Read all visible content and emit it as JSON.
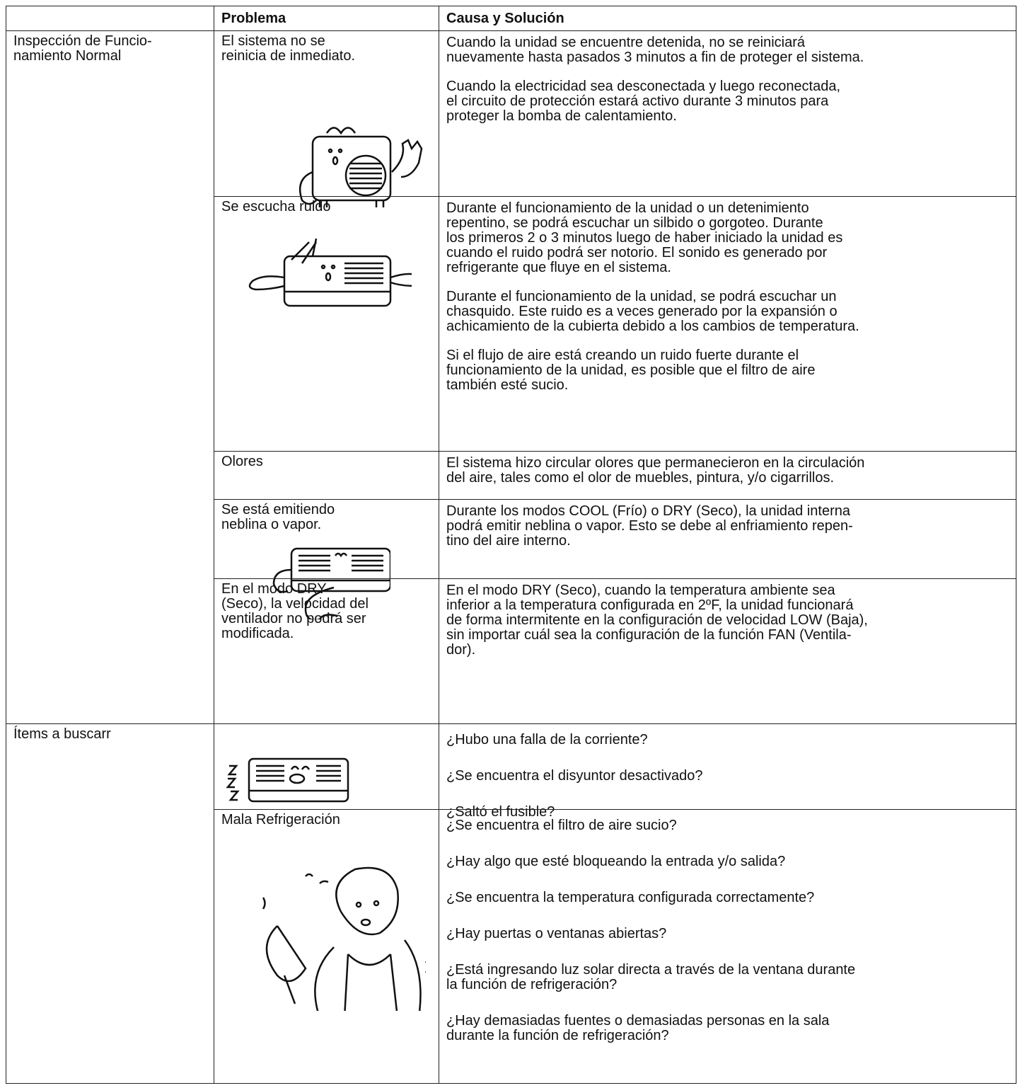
{
  "table": {
    "header": {
      "problem": "Problema",
      "cause": "Causa y Solución"
    },
    "groups": [
      {
        "label": [
          "Inspección de Funcio-",
          "namiento Normal"
        ],
        "rows": [
          {
            "problem": [
              "El sistema no se",
              "reinicia de inmediato."
            ],
            "causes": [
              [
                "Cuando la unidad se encuentre detenida, no se reiniciará",
                "nuevamente hasta pasados 3 minutos a fin de proteger el sistema."
              ],
              [
                "Cuando la electricidad sea desconectada y luego reconectada,",
                "el circuito de protección estará activo durante 3 minutos para",
                "proteger la bomba de calentamiento."
              ]
            ]
          },
          {
            "problem": [
              "Se escucha ruido"
            ],
            "causes": [
              [
                "Durante el funcionamiento de la unidad o un detenimiento",
                "repentino, se podrá escuchar un silbido o gorgoteo. Durante",
                "los primeros 2 o 3 minutos luego de haber iniciado la unidad es",
                "cuando el ruido podrá ser notorio. El sonido es generado por",
                "refrigerante que fluye en el sistema."
              ],
              [
                "Durante el funcionamiento de la unidad, se podrá escuchar un",
                "chasquido. Este ruido es a veces generado por la expansión o",
                "achicamiento de la cubierta debido a los cambios de temperatura."
              ],
              [
                "Si el flujo de aire está creando un ruido fuerte durante el",
                "funcionamiento de la unidad, es posible que el filtro de aire",
                "también esté sucio."
              ]
            ]
          },
          {
            "problem": [
              "Olores"
            ],
            "causes": [
              [
                "El sistema hizo circular olores que permanecieron en la circulación",
                "del aire, tales como el olor de muebles, pintura, y/o cigarrillos."
              ]
            ]
          },
          {
            "problem": [
              "Se está emitiendo",
              "neblina o vapor."
            ],
            "causes": [
              [
                "Durante los modos COOL (Frío) o DRY (Seco), la unidad interna",
                "podrá emitir neblina o vapor. Esto se debe al enfriamiento repen-",
                "tino del aire interno."
              ]
            ]
          },
          {
            "problem": [
              "En el modo DRY",
              "(Seco), la velocidad del",
              "ventilador no podrá ser",
              "modificada."
            ],
            "causes": [
              [
                "En el modo DRY (Seco), cuando la temperatura ambiente sea",
                "inferior a la temperatura configurada en 2ºF, la unidad funcionará",
                "de forma intermitente en la configuración de velocidad LOW (Baja),",
                "sin importar cuál sea la configuración de la función FAN (Ventila-",
                "dor)."
              ]
            ]
          }
        ]
      },
      {
        "label": [
          "Ítems a buscarr"
        ],
        "rows": [
          {
            "causes": [
              [
                "¿Hubo una falla de la corriente?"
              ],
              [
                "¿Se encuentra el disyuntor desactivado?"
              ],
              [
                "¿Saltó el fusible?"
              ]
            ]
          },
          {
            "problem": [
              "Mala Refrigeración"
            ],
            "causes": [
              [
                "¿Se encuentra el filtro de aire sucio?"
              ],
              [
                "¿Hay algo que esté bloqueando la entrada y/o salida?"
              ],
              [
                "¿Se encuentra la temperatura configurada correctamente?"
              ],
              [
                "¿Hay puertas o ventanas abiertas?"
              ],
              [
                "¿Está ingresando luz solar directa a través de la ventana durante",
                "la función de refrigeración?"
              ],
              [
                "¿Hay demasiadas fuentes o demasiadas personas en la sala",
                "durante la función de refrigeración?"
              ]
            ]
          }
        ]
      }
    ]
  }
}
